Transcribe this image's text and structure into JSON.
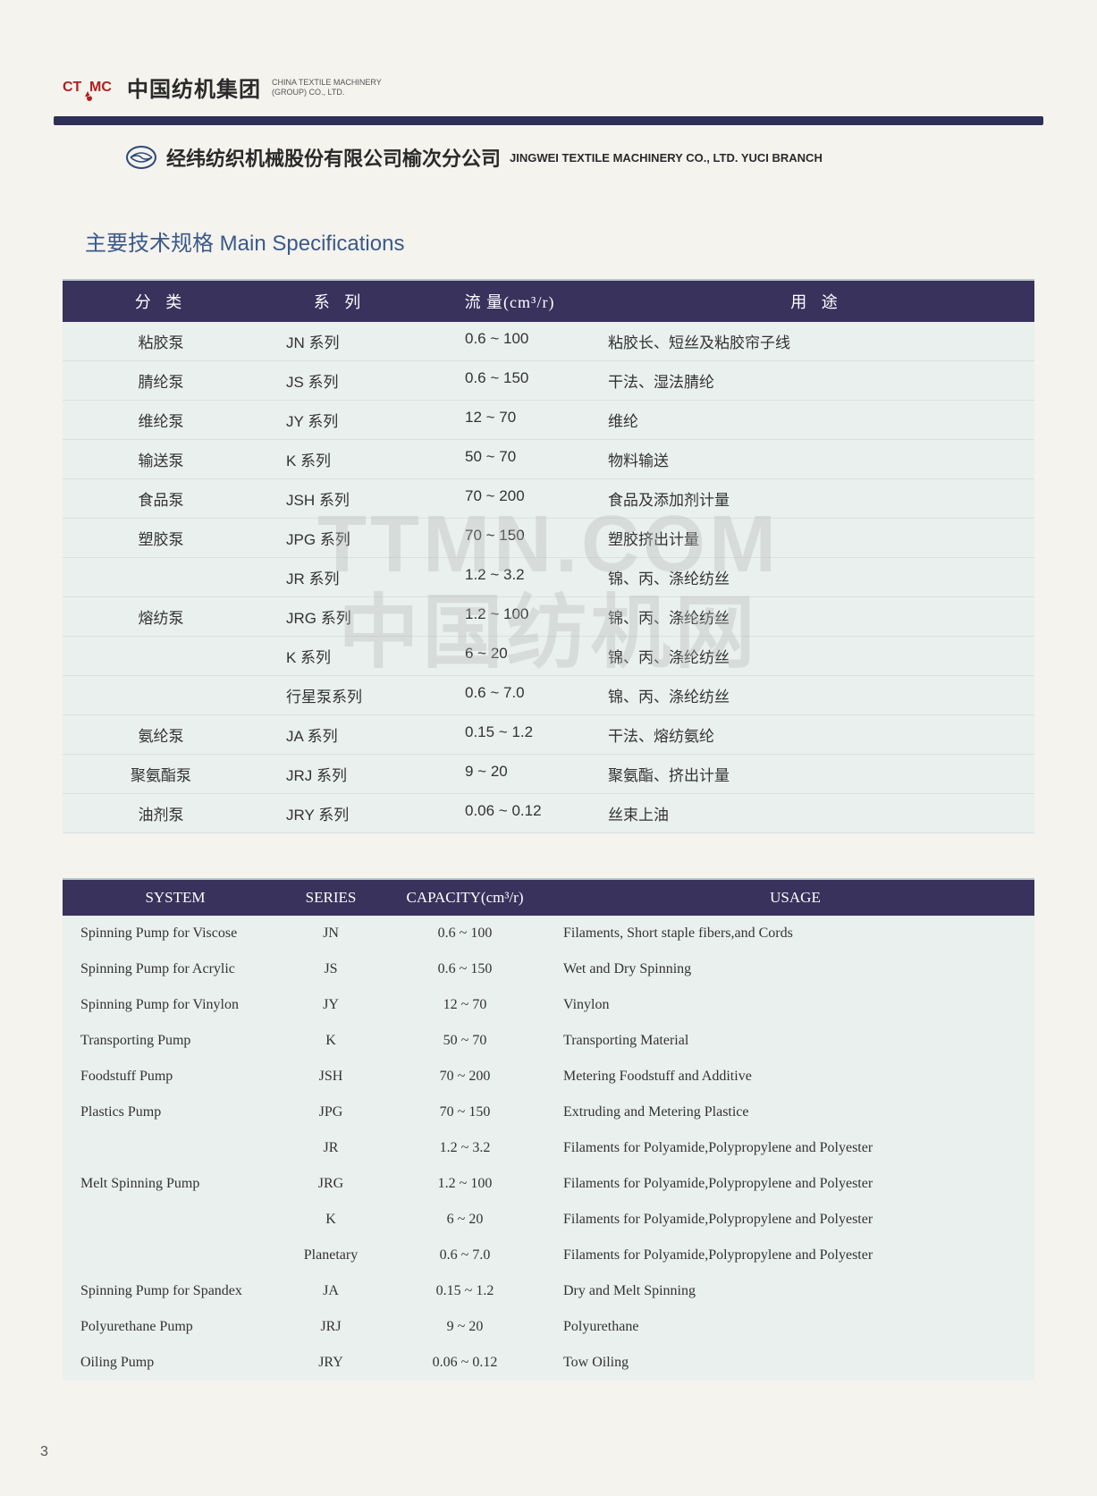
{
  "header": {
    "logo_label": "CTMC",
    "company_cn": "中国纺机集团",
    "company_en_line1": "CHINA TEXTILE MACHINERY",
    "company_en_line2": "(GROUP) CO., LTD."
  },
  "branch": {
    "cn": "经纬纺织机械股份有限公司榆次分公司",
    "en": "JINGWEI TEXTILE MACHINERY CO., LTD. YUCI BRANCH"
  },
  "section_title_cn": "主要技术规格",
  "section_title_en": "Main Specifications",
  "table_cn": {
    "headers": {
      "c1": "分  类",
      "c2": "系  列",
      "c3": "流  量(cm³/r)",
      "c4": "用    途"
    },
    "rows": [
      {
        "c1": "粘胶泵",
        "c2": "JN 系列",
        "c3": "0.6 ~ 100",
        "c4": "粘胶长、短丝及粘胶帘子线"
      },
      {
        "c1": "腈纶泵",
        "c2": "JS 系列",
        "c3": "0.6 ~ 150",
        "c4": "干法、湿法腈纶"
      },
      {
        "c1": "维纶泵",
        "c2": "JY 系列",
        "c3": "12 ~ 70",
        "c4": "维纶"
      },
      {
        "c1": "输送泵",
        "c2": "K 系列",
        "c3": "50 ~ 70",
        "c4": "物料输送"
      },
      {
        "c1": "食品泵",
        "c2": "JSH 系列",
        "c3": "70 ~ 200",
        "c4": "食品及添加剂计量"
      },
      {
        "c1": "塑胶泵",
        "c2": "JPG 系列",
        "c3": "70 ~ 150",
        "c4": "塑胶挤出计量"
      },
      {
        "c1": "",
        "c2": "JR 系列",
        "c3": "1.2 ~ 3.2",
        "c4": "锦、丙、涤纶纺丝"
      },
      {
        "c1": "熔纺泵",
        "c2": "JRG 系列",
        "c3": "1.2 ~ 100",
        "c4": "锦、丙、涤纶纺丝"
      },
      {
        "c1": "",
        "c2": "K 系列",
        "c3": "6 ~ 20",
        "c4": "锦、丙、涤纶纺丝"
      },
      {
        "c1": "",
        "c2": "行星泵系列",
        "c3": "0.6 ~ 7.0",
        "c4": "锦、丙、涤纶纺丝"
      },
      {
        "c1": "氨纶泵",
        "c2": "JA 系列",
        "c3": "0.15 ~ 1.2",
        "c4": "干法、熔纺氨纶"
      },
      {
        "c1": "聚氨酯泵",
        "c2": "JRJ 系列",
        "c3": "9 ~ 20",
        "c4": "聚氨酯、挤出计量"
      },
      {
        "c1": "油剂泵",
        "c2": "JRY 系列",
        "c3": "0.06 ~ 0.12",
        "c4": "丝束上油"
      }
    ]
  },
  "table_en": {
    "headers": {
      "c1": "SYSTEM",
      "c2": "SERIES",
      "c3": "CAPACITY(cm³/r)",
      "c4": "USAGE"
    },
    "rows": [
      {
        "c1": "Spinning Pump for Viscose",
        "c2": "JN",
        "c3": "0.6 ~ 100",
        "c4": "Filaments, Short staple fibers,and Cords"
      },
      {
        "c1": "Spinning Pump for Acrylic",
        "c2": "JS",
        "c3": "0.6 ~ 150",
        "c4": "Wet and Dry Spinning"
      },
      {
        "c1": "Spinning Pump for Vinylon",
        "c2": "JY",
        "c3": "12 ~ 70",
        "c4": "Vinylon"
      },
      {
        "c1": "Transporting Pump",
        "c2": "K",
        "c3": "50 ~ 70",
        "c4": "Transporting Material"
      },
      {
        "c1": "Foodstuff Pump",
        "c2": "JSH",
        "c3": "70 ~ 200",
        "c4": "Metering Foodstuff and Additive"
      },
      {
        "c1": "Plastics Pump",
        "c2": "JPG",
        "c3": "70 ~ 150",
        "c4": "Extruding and Metering Plastice"
      },
      {
        "c1": "",
        "c2": "JR",
        "c3": "1.2 ~ 3.2",
        "c4": "Filaments for Polyamide,Polypropylene and Polyester"
      },
      {
        "c1": "Melt Spinning Pump",
        "c2": "JRG",
        "c3": "1.2 ~ 100",
        "c4": "Filaments for Polyamide,Polypropylene and Polyester"
      },
      {
        "c1": "",
        "c2": "K",
        "c3": "6 ~ 20",
        "c4": "Filaments for Polyamide,Polypropylene and Polyester"
      },
      {
        "c1": "",
        "c2": "Planetary",
        "c3": "0.6 ~ 7.0",
        "c4": "Filaments for Polyamide,Polypropylene and Polyester"
      },
      {
        "c1": "Spinning Pump for Spandex",
        "c2": "JA",
        "c3": "0.15 ~ 1.2",
        "c4": "Dry and Melt Spinning"
      },
      {
        "c1": "Polyurethane Pump",
        "c2": "JRJ",
        "c3": "9 ~ 20",
        "c4": "Polyurethane"
      },
      {
        "c1": "Oiling Pump",
        "c2": "JRY",
        "c3": "0.06 ~ 0.12",
        "c4": "Tow Oiling"
      }
    ]
  },
  "watermark": {
    "line1": "TTMN.COM",
    "line2": "中国纺机网"
  },
  "page_number": "3",
  "colors": {
    "header_bar": "#38325c",
    "divider": "#2e3057",
    "title": "#3a5a8a",
    "table_bg": "#eaf0ee",
    "page_bg": "#f5f3ee",
    "logo_red": "#b02020"
  }
}
